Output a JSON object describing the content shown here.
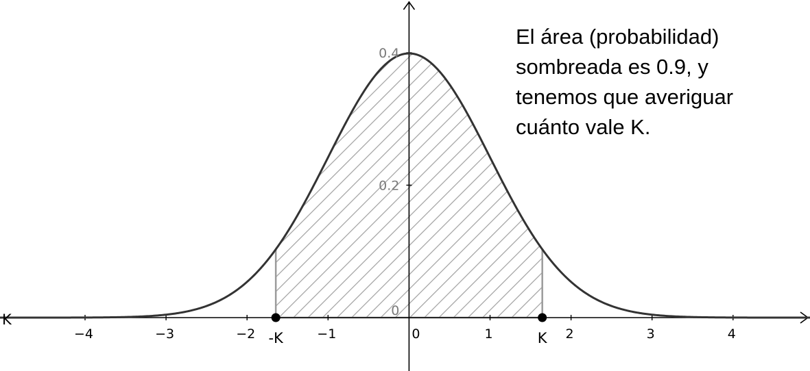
{
  "chart_data": {
    "type": "area",
    "function": "standard normal density",
    "x_ticks": [
      -4,
      -3,
      -2,
      -1,
      0,
      1,
      2,
      3,
      4
    ],
    "x_tick_labels": [
      "−4",
      "−3",
      "−2",
      "−1",
      "0",
      "1",
      "2",
      "3",
      "4"
    ],
    "y_ticks": [
      0,
      0.2,
      0.4
    ],
    "y_tick_labels": [
      "0",
      "0.2",
      "0.4"
    ],
    "xlim": [
      -5.05,
      4.95
    ],
    "ylim": [
      -0.04,
      0.4
    ],
    "shaded_region": {
      "from": -1.645,
      "to": 1.645,
      "area": 0.9,
      "pattern": "hatched"
    },
    "points": [
      {
        "label": "-K",
        "x": -1.645,
        "y": 0
      },
      {
        "label": "K",
        "x": 1.645,
        "y": 0
      }
    ],
    "x_axis_left_label": "K",
    "grid": false,
    "colors": {
      "curve": "#333333",
      "hatch": "#a0a0a0",
      "region_edge": "#9b9b9b",
      "axis": "#000000",
      "point": "#000000"
    }
  },
  "annotation": {
    "lines": [
      "El área (probabilidad)",
      "sombreada es 0.9, y",
      "tenemos que averiguar",
      "cuánto vale K."
    ]
  }
}
